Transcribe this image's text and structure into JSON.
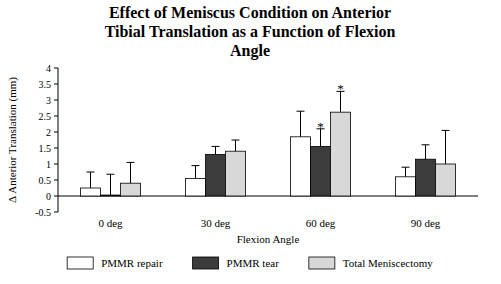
{
  "chart_data": {
    "type": "bar",
    "title": "Effect of Meniscus Condition on Anterior Tibial Translation as a Function of Flexion Angle",
    "x_label": "Flexion Angle",
    "y_label": "Δ Anterior Translation (mm)",
    "categories": [
      "0 deg",
      "30 deg",
      "60 deg",
      "90 deg"
    ],
    "series": [
      {
        "name": "PMMR repair",
        "color": "#ffffff",
        "values": [
          0.25,
          0.55,
          1.85,
          0.6
        ],
        "errors": [
          0.5,
          0.4,
          0.8,
          0.3
        ],
        "annotations": [
          null,
          null,
          null,
          null
        ]
      },
      {
        "name": "PMMR tear",
        "color": "#3c3c3c",
        "values": [
          0.03,
          1.3,
          1.55,
          1.15
        ],
        "errors": [
          0.65,
          0.25,
          0.55,
          0.45
        ],
        "annotations": [
          null,
          null,
          "*",
          null
        ]
      },
      {
        "name": "Total Meniscectomy",
        "color": "#d8d8d8",
        "values": [
          0.4,
          1.4,
          2.62,
          1.0
        ],
        "errors": [
          0.65,
          0.35,
          0.65,
          1.05
        ],
        "annotations": [
          null,
          null,
          "*",
          null
        ]
      }
    ],
    "ylim": [
      -0.5,
      4
    ],
    "yticks": [
      -0.5,
      0,
      0.5,
      1,
      1.5,
      2,
      2.5,
      3,
      3.5,
      4
    ],
    "grid": false,
    "legend": "bottom"
  }
}
